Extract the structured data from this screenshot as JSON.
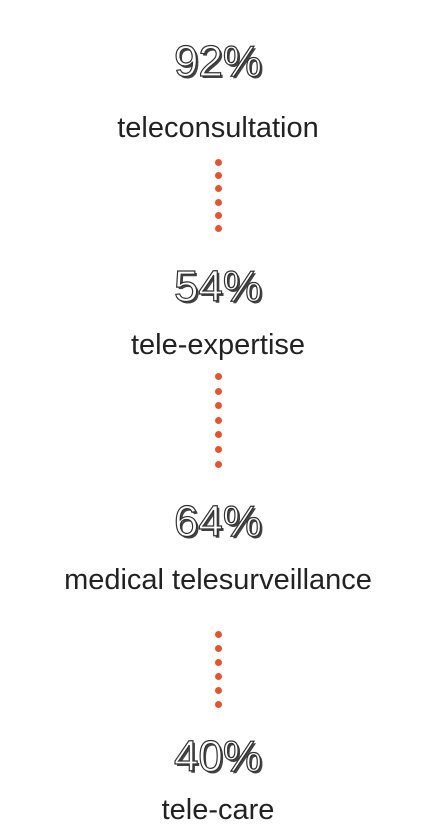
{
  "items": [
    {
      "value": "92%",
      "label": "teleconsultation"
    },
    {
      "value": "54%",
      "label": "tele-expertise"
    },
    {
      "value": "64%",
      "label": "medical telesurveillance"
    },
    {
      "value": "40%",
      "label": "tele-care"
    }
  ]
}
